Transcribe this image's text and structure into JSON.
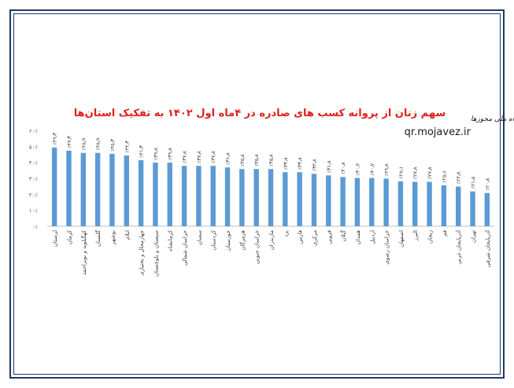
{
  "chart_data": {
    "type": "bar",
    "title": "سهم زنان از پروانه کسب های صادره در ۴ماه اول ۱۴۰۲ به تفکیک استان‌ها",
    "watermark_script": "درگاه ملی مجوزها",
    "watermark_url": "qr.mojavez.ir",
    "ylim": [
      0,
      60
    ],
    "yticks": [
      0,
      10,
      20,
      30,
      40,
      50,
      60
    ],
    "ytick_labels": [
      "۰٪",
      "۱۰٪",
      "۲۰٪",
      "۳۰٪",
      "۴۰٪",
      "۵۰٪",
      "۶۰٪"
    ],
    "grid": false,
    "bar_color": "#5b9bd5",
    "categories": [
      "لرستان",
      "کرمان",
      "کهگیلویه و بویراحمد",
      "گلستان",
      "بوشهر",
      "ایلام",
      "چهارمحال و بختیاری",
      "سیستان و بلوچستان",
      "کرمانشاه",
      "خراسان شمالی",
      "سمنان",
      "کردستان",
      "خوزستان",
      "هرمزگان",
      "خراسان جنوبی",
      "مازندران",
      "یزد",
      "فارس",
      "مرکزی",
      "قزوین",
      "گیلان",
      "همدان",
      "اردبیل",
      "خراسان رضوی",
      "اصفهان",
      "البرز",
      "زنجان",
      "قم",
      "آذربایجان غربی",
      "تهران",
      "آذربایجان شرقی"
    ],
    "values": [
      49.3,
      47.3,
      45.9,
      45.9,
      45.3,
      44.3,
      41.3,
      39.8,
      39.8,
      37.8,
      37.8,
      37.8,
      36.8,
      35.8,
      35.8,
      35.8,
      33.8,
      33.8,
      32.8,
      31.8,
      30.8,
      30.2,
      30.2,
      29.8,
      28.1,
      27.8,
      27.8,
      25.6,
      24.8,
      21.8,
      20.8
    ],
    "value_labels": [
      "٪۴۹٫۳",
      "٪۴۷٫۳",
      "٪۴۵٫۹",
      "٪۴۵٫۹",
      "٪۴۵٫۳",
      "٪۴۴٫۳",
      "٪۴۱٫۳",
      "٪۳۹٫۸",
      "٪۳۹٫۸",
      "٪۳۷٫۸",
      "٪۳۷٫۸",
      "٪۳۷٫۸",
      "٪۳۶٫۸",
      "٪۳۵٫۸",
      "٪۳۵٫۸",
      "٪۳۵٫۸",
      "٪۳۳٫۸",
      "٪۳۳٫۸",
      "٪۳۲٫۸",
      "٪۳۱٫۸",
      "٪۳۰٫۸",
      "٪۳۰٫۲",
      "٪۳۰٫۲",
      "٪۲۹٫۸",
      "٪۲۸٫۱",
      "٪۲۷٫۸",
      "٪۲۷٫۸",
      "٪۲۵٫۶",
      "٪۲۴٫۸",
      "٪۲۱٫۸",
      "٪۲۰٫۸"
    ]
  }
}
